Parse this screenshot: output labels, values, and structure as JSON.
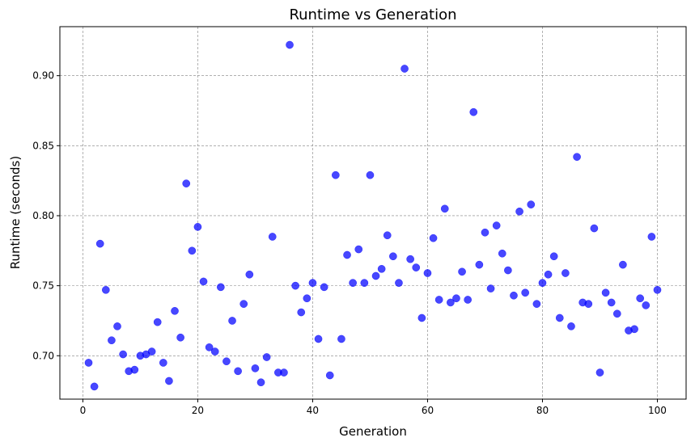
{
  "chart_data": {
    "type": "scatter",
    "title": "Runtime vs Generation",
    "xlabel": "Generation",
    "ylabel": "Runtime (seconds)",
    "xlim": [
      -4,
      105
    ],
    "ylim": [
      0.669,
      0.935
    ],
    "xticks": [
      0,
      20,
      40,
      60,
      80,
      100
    ],
    "yticks": [
      0.7,
      0.75,
      0.8,
      0.85,
      0.9
    ],
    "xtick_labels": [
      "0",
      "20",
      "40",
      "60",
      "80",
      "100"
    ],
    "ytick_labels": [
      "0.70",
      "0.75",
      "0.80",
      "0.85",
      "0.90"
    ],
    "grid": true,
    "legend": "none",
    "color": "#0000ff",
    "x": [
      1,
      2,
      3,
      4,
      5,
      6,
      7,
      8,
      9,
      10,
      11,
      12,
      13,
      14,
      15,
      16,
      17,
      18,
      19,
      20,
      21,
      22,
      23,
      24,
      25,
      26,
      27,
      28,
      29,
      30,
      31,
      32,
      33,
      34,
      35,
      36,
      37,
      38,
      39,
      40,
      41,
      42,
      43,
      44,
      45,
      46,
      47,
      48,
      49,
      50,
      51,
      52,
      53,
      54,
      55,
      56,
      57,
      58,
      59,
      60,
      61,
      62,
      63,
      64,
      65,
      66,
      67,
      68,
      69,
      70,
      71,
      72,
      73,
      74,
      75,
      76,
      77,
      78,
      79,
      80,
      81,
      82,
      83,
      84,
      85,
      86,
      87,
      88,
      89,
      90,
      91,
      92,
      93,
      94,
      95,
      96,
      97,
      98,
      99,
      100
    ],
    "y": [
      0.695,
      0.678,
      0.78,
      0.747,
      0.711,
      0.721,
      0.701,
      0.689,
      0.69,
      0.7,
      0.701,
      0.703,
      0.724,
      0.695,
      0.682,
      0.732,
      0.713,
      0.823,
      0.775,
      0.792,
      0.753,
      0.706,
      0.703,
      0.749,
      0.696,
      0.725,
      0.689,
      0.737,
      0.758,
      0.691,
      0.681,
      0.699,
      0.785,
      0.688,
      0.688,
      0.922,
      0.75,
      0.731,
      0.741,
      0.752,
      0.712,
      0.749,
      0.686,
      0.829,
      0.712,
      0.772,
      0.752,
      0.776,
      0.752,
      0.829,
      0.757,
      0.762,
      0.786,
      0.771,
      0.752,
      0.905,
      0.769,
      0.763,
      0.727,
      0.759,
      0.784,
      0.74,
      0.805,
      0.738,
      0.741,
      0.76,
      0.74,
      0.874,
      0.765,
      0.788,
      0.748,
      0.793,
      0.773,
      0.761,
      0.743,
      0.803,
      0.745,
      0.808,
      0.737,
      0.752,
      0.758,
      0.771,
      0.727,
      0.759,
      0.721,
      0.842,
      0.738,
      0.737,
      0.791,
      0.688,
      0.745,
      0.738,
      0.73,
      0.765,
      0.718,
      0.719,
      0.741,
      0.736,
      0.785,
      0.747
    ]
  }
}
